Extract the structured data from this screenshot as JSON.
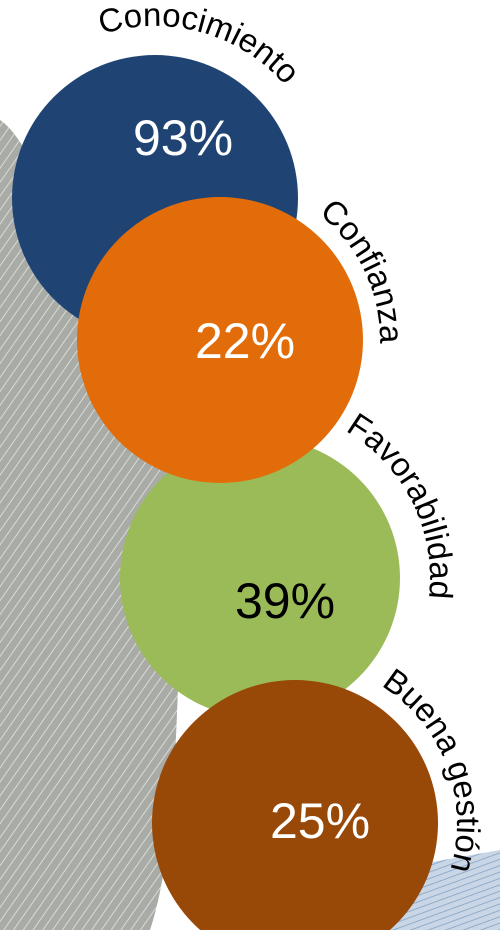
{
  "items": [
    {
      "label": "Conocimiento",
      "value": "93%"
    },
    {
      "label": "Confianza",
      "value": "22%"
    },
    {
      "label": "Favorabilidad",
      "value": "39%"
    },
    {
      "label": "Buena gestión",
      "value": "25%"
    }
  ]
}
